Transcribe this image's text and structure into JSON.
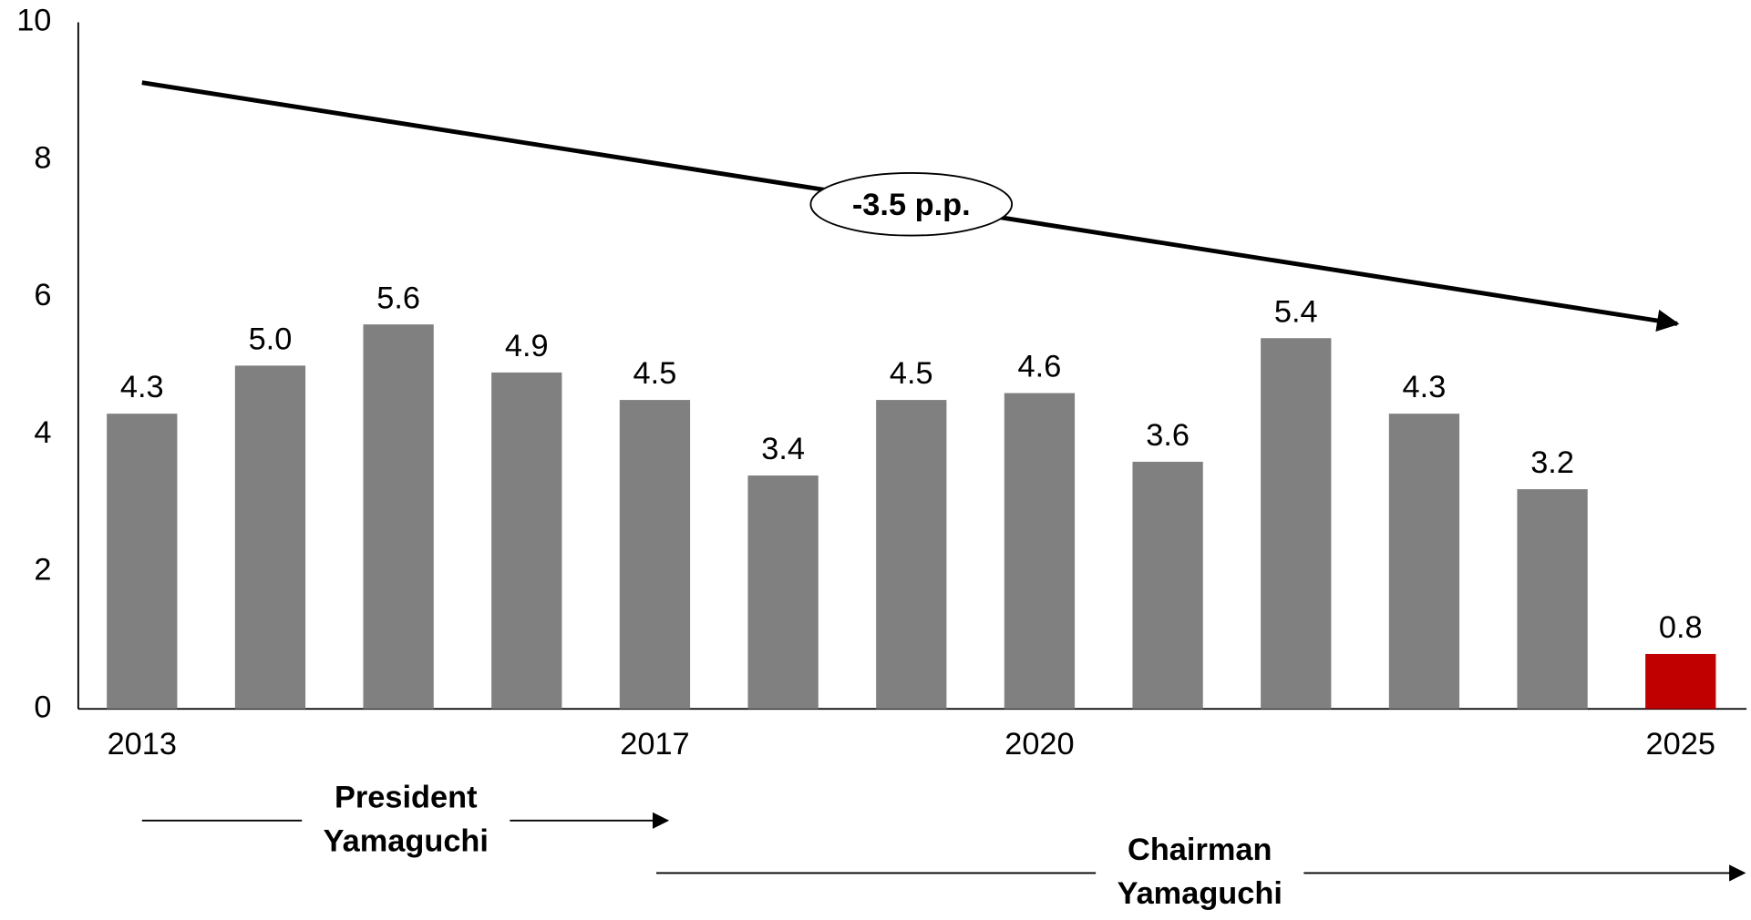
{
  "chart_data": {
    "type": "bar",
    "categories": [
      "2013",
      null,
      null,
      null,
      "2017",
      null,
      null,
      "2020",
      null,
      null,
      null,
      null,
      "2025"
    ],
    "values": [
      4.3,
      5.0,
      5.6,
      4.9,
      4.5,
      3.4,
      4.5,
      4.6,
      3.6,
      5.4,
      4.3,
      3.2,
      0.8
    ],
    "value_labels": [
      "4.3",
      "5.0",
      "5.6",
      "4.9",
      "4.5",
      "3.4",
      "4.5",
      "4.6",
      "3.6",
      "5.4",
      "4.3",
      "3.2",
      "0.8"
    ],
    "colors": [
      "#808080",
      "#808080",
      "#808080",
      "#808080",
      "#808080",
      "#808080",
      "#808080",
      "#808080",
      "#808080",
      "#808080",
      "#808080",
      "#808080",
      "#c00000"
    ],
    "ylim": [
      0,
      10
    ],
    "yticks": [
      0,
      2,
      4,
      6,
      8,
      10
    ],
    "grid": false,
    "annotations": {
      "trend": "-3.5 p.p.",
      "president": [
        "President",
        "Yamaguchi"
      ],
      "chairman": [
        "Chairman",
        "Yamaguchi"
      ]
    }
  }
}
